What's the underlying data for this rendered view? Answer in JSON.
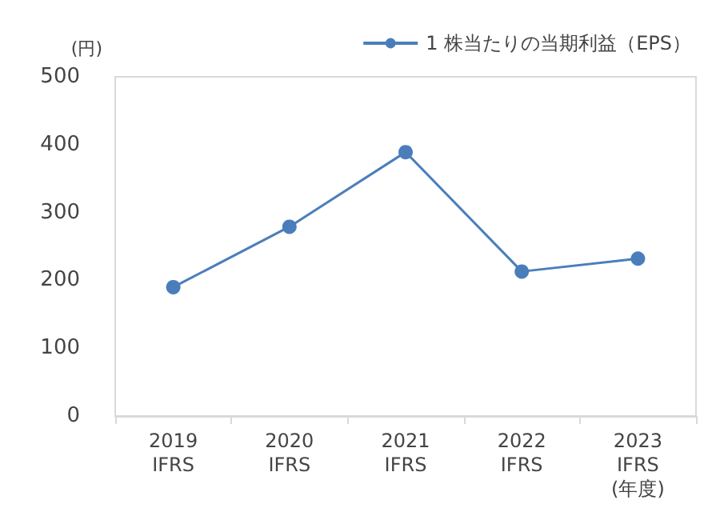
{
  "chart_data": {
    "type": "line",
    "ylabel": "(円)",
    "categories": [
      "2019\nIFRS",
      "2020\nIFRS",
      "2021\nIFRS",
      "2022\nIFRS",
      "2023\nIFRS\n(年度)"
    ],
    "series": [
      {
        "name": "1 株当たりの当期利益（EPS）",
        "color": "#4a7ebb",
        "values": [
          190,
          279,
          389,
          213,
          232
        ]
      }
    ],
    "ylim": [
      0,
      500
    ],
    "yticks": [
      0,
      100,
      200,
      300,
      400,
      500
    ],
    "grid": false,
    "legend": "top right",
    "marker": "circle",
    "line_style": "solid"
  }
}
